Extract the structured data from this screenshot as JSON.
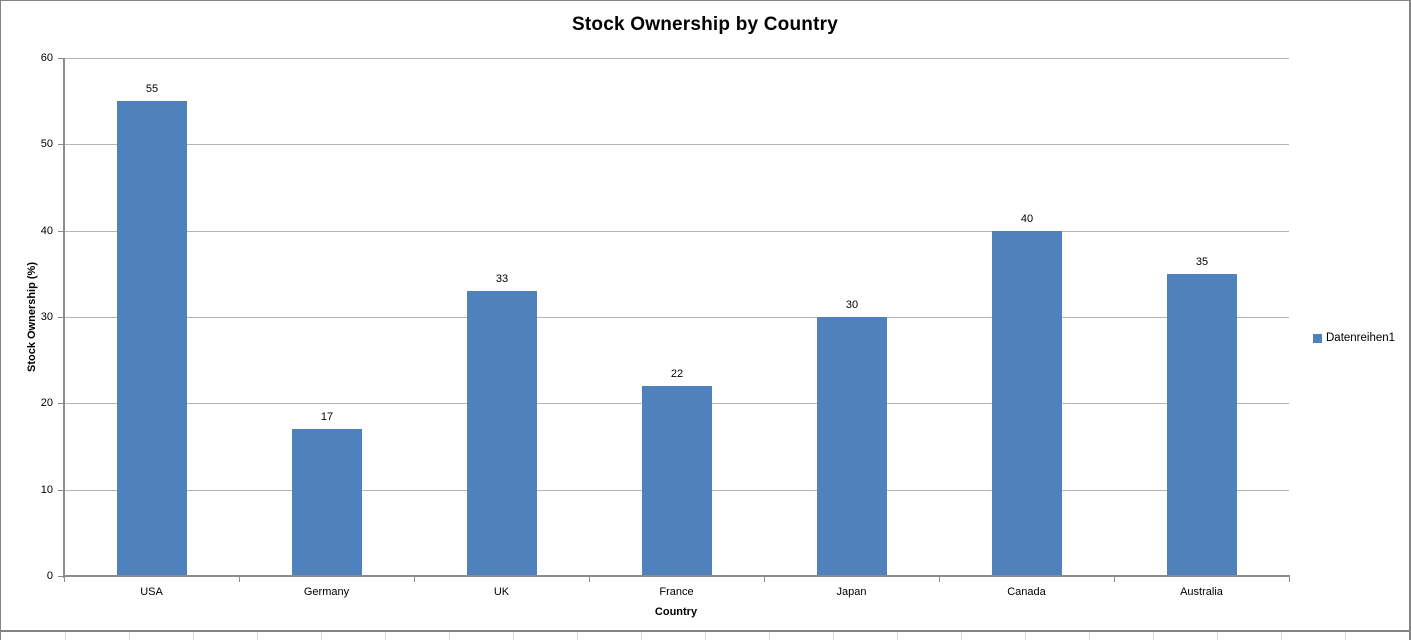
{
  "chart_data": {
    "type": "bar",
    "title": "Stock Ownership by Country",
    "categories": [
      "USA",
      "Germany",
      "UK",
      "France",
      "Japan",
      "Canada",
      "Australia"
    ],
    "values": [
      55,
      17,
      33,
      22,
      30,
      40,
      35
    ],
    "series": [
      {
        "name": "Datenreihen1",
        "values": [
          55,
          17,
          33,
          22,
          30,
          40,
          35
        ]
      }
    ],
    "xlabel": "Country",
    "ylabel": "Stock Ownership (%)",
    "ylim": [
      0,
      60
    ],
    "yticks": [
      0,
      10,
      20,
      30,
      40,
      50,
      60
    ],
    "grid": true,
    "data_labels": true,
    "legend": {
      "position": "right",
      "entries": [
        "Datenreihen1"
      ]
    }
  },
  "colors": {
    "bar_fill": "#4F81BD",
    "gridline": "#B5B5B5",
    "axis_line": "#8C8C8C",
    "text": "#000000",
    "chart_border": "#848484",
    "worksheet_gridline": "#D4D4D4",
    "background": "#FFFFFF"
  }
}
